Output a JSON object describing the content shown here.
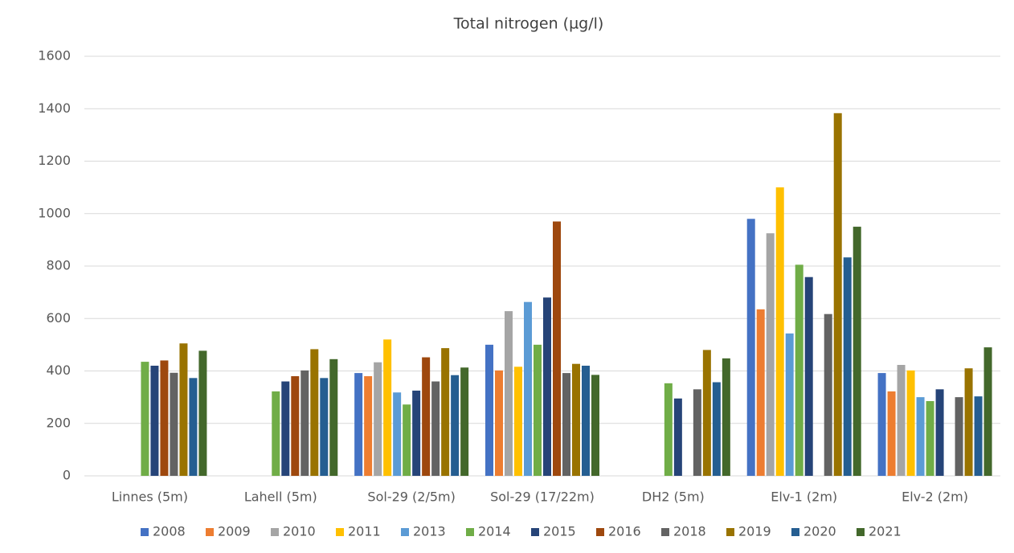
{
  "chart_data": {
    "type": "bar",
    "title": "Total nitrogen (µg/l)",
    "categories": [
      "Linnes (5m)",
      "Lahell (5m)",
      "Sol-29 (2/5m)",
      "Sol-29 (17/22m)",
      "DH2 (5m)",
      "Elv-1 (2m)",
      "Elv-2 (2m)"
    ],
    "series": [
      {
        "name": "2008",
        "color": "#4472c4",
        "values": [
          null,
          null,
          392,
          500,
          null,
          980,
          392
        ]
      },
      {
        "name": "2009",
        "color": "#ed7d31",
        "values": [
          null,
          null,
          380,
          402,
          null,
          635,
          322
        ]
      },
      {
        "name": "2010",
        "color": "#a5a5a5",
        "values": [
          null,
          null,
          433,
          628,
          null,
          925,
          423
        ]
      },
      {
        "name": "2011",
        "color": "#ffc000",
        "values": [
          null,
          null,
          520,
          416,
          null,
          1100,
          402
        ]
      },
      {
        "name": "2013",
        "color": "#5b9bd5",
        "values": [
          null,
          null,
          318,
          663,
          null,
          543,
          300
        ]
      },
      {
        "name": "2014",
        "color": "#70ad47",
        "values": [
          435,
          322,
          272,
          500,
          353,
          805,
          285
        ]
      },
      {
        "name": "2015",
        "color": "#264478",
        "values": [
          420,
          360,
          325,
          680,
          295,
          758,
          330
        ]
      },
      {
        "name": "2016",
        "color": "#9e480e",
        "values": [
          440,
          380,
          452,
          970,
          null,
          null,
          null
        ]
      },
      {
        "name": "2018",
        "color": "#636363",
        "values": [
          393,
          402,
          360,
          392,
          330,
          617,
          300
        ]
      },
      {
        "name": "2019",
        "color": "#997300",
        "values": [
          505,
          483,
          487,
          427,
          480,
          1383,
          410
        ]
      },
      {
        "name": "2020",
        "color": "#255e91",
        "values": [
          373,
          373,
          384,
          420,
          357,
          833,
          303
        ]
      },
      {
        "name": "2021",
        "color": "#43682b",
        "values": [
          477,
          445,
          413,
          385,
          448,
          950,
          490
        ]
      }
    ],
    "ylim": [
      0,
      1600
    ],
    "yticks": [
      0,
      200,
      400,
      600,
      800,
      1000,
      1200,
      1400,
      1600
    ],
    "grid": true,
    "legend": "bottom"
  }
}
